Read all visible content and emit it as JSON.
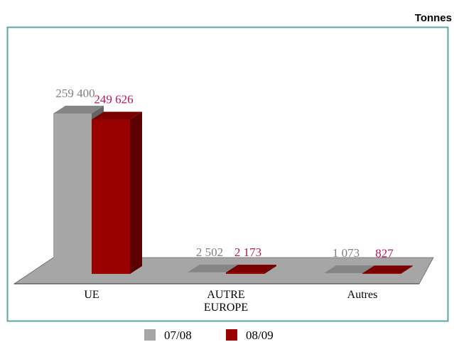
{
  "chart_data": {
    "type": "bar3d",
    "unit": "Tonnes",
    "categories": [
      "UE",
      "AUTRE EUROPE",
      "Autres"
    ],
    "series": [
      {
        "name": "07/08",
        "color": "#a6a6a6",
        "label_color": "#7f7f7f",
        "values": [
          259400,
          2502,
          1073
        ],
        "value_labels": [
          "259 400",
          "2 502",
          "1 073"
        ]
      },
      {
        "name": "08/09",
        "color": "#990000",
        "label_color": "#b3195a",
        "values": [
          249626,
          2173,
          827
        ],
        "value_labels": [
          "249 626",
          "2 173",
          "827"
        ]
      }
    ]
  }
}
